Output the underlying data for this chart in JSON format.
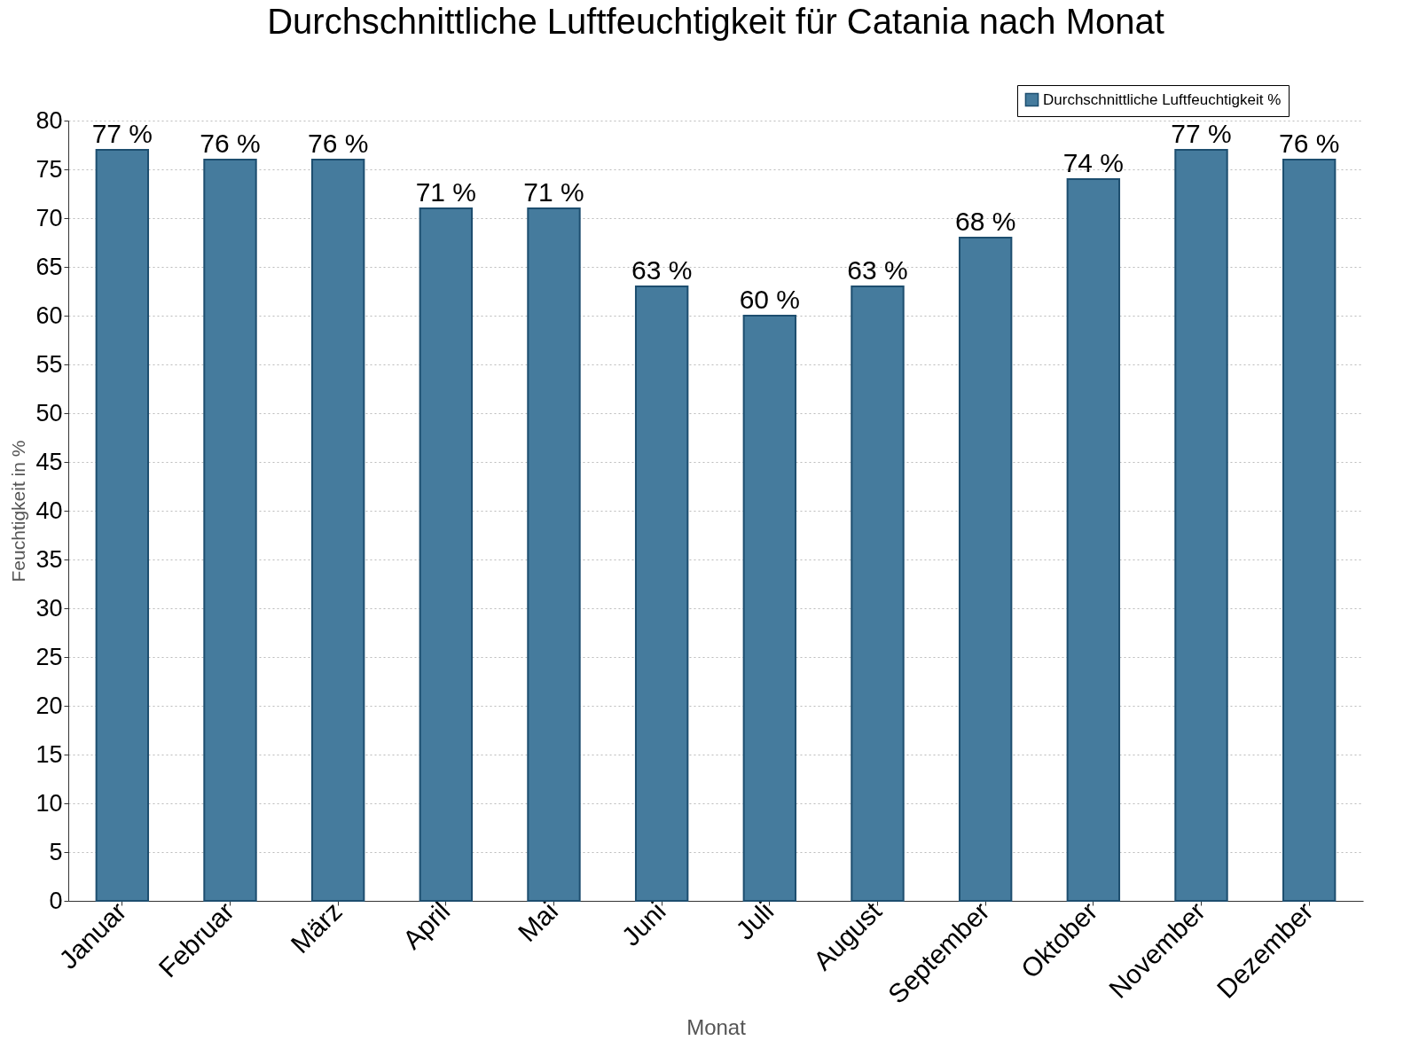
{
  "chart_data": {
    "type": "bar",
    "title": "Durchschnittliche Luftfeuchtigkeit für Catania nach Monat",
    "xlabel": "Monat",
    "ylabel": "Feuchtigkeit in %",
    "categories": [
      "Januar",
      "Februar",
      "März",
      "April",
      "Mai",
      "Juni",
      "Juli",
      "August",
      "September",
      "Oktober",
      "November",
      "Dezember"
    ],
    "series": [
      {
        "name": "Durchschnittliche Luftfeuchtigkeit %",
        "color": "#457b9d",
        "values": [
          77,
          76,
          76,
          71,
          71,
          63,
          60,
          63,
          68,
          74,
          77,
          76
        ],
        "value_labels": [
          "77 %",
          "76 %",
          "76 %",
          "71 %",
          "71 %",
          "63 %",
          "60 %",
          "63 %",
          "68 %",
          "74 %",
          "77 %",
          "76 %"
        ]
      }
    ],
    "ylim": [
      0,
      80
    ],
    "yticks": [
      0,
      5,
      10,
      15,
      20,
      25,
      30,
      35,
      40,
      45,
      50,
      55,
      60,
      65,
      70,
      75,
      80
    ],
    "grid": "y",
    "legend": "top right"
  }
}
